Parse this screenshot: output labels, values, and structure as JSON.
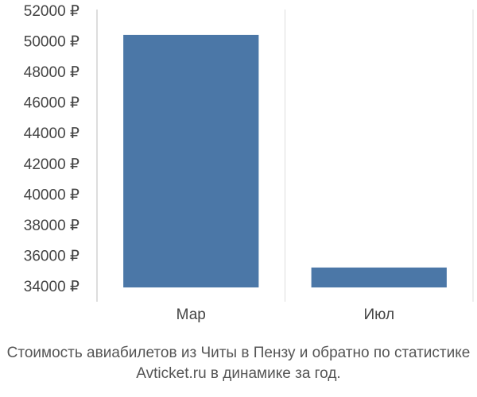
{
  "chart_data": {
    "type": "bar",
    "title": "Стоимость авиабилетов из Читы в Пензу и обратно по статистике Avticket.ru в динамике за год.",
    "categories": [
      "Мар",
      "Июл"
    ],
    "values": [
      50500,
      35300
    ],
    "color": "#4b77a7",
    "ylim": [
      34000,
      52000
    ],
    "yticks": [
      {
        "value": 34000,
        "label": "34000 ₽"
      },
      {
        "value": 36000,
        "label": "36000 ₽"
      },
      {
        "value": 38000,
        "label": "38000 ₽"
      },
      {
        "value": 40000,
        "label": "40000 ₽"
      },
      {
        "value": 42000,
        "label": "42000 ₽"
      },
      {
        "value": 44000,
        "label": "44000 ₽"
      },
      {
        "value": 46000,
        "label": "46000 ₽"
      },
      {
        "value": 48000,
        "label": "48000 ₽"
      },
      {
        "value": 50000,
        "label": "50000 ₽"
      },
      {
        "value": 52000,
        "label": "52000 ₽"
      }
    ],
    "grid": true
  }
}
